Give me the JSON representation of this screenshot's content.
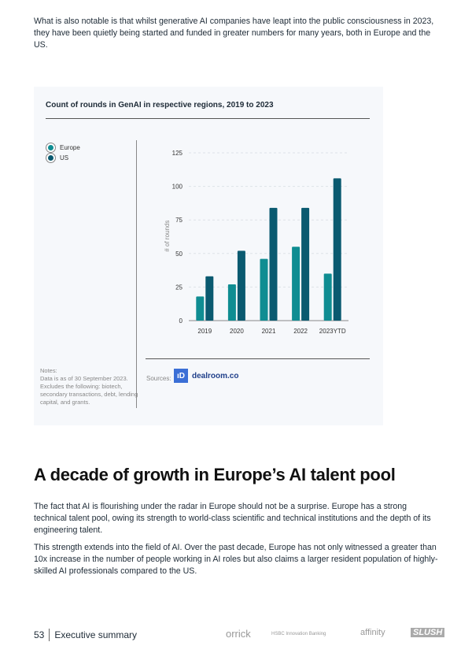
{
  "intro": "What is also notable is that whilst generative AI companies have leapt into the public consciousness in 2023, they have been quietly being started and funded in greater numbers for many years, both in Europe and the US.",
  "chart_data": {
    "type": "bar",
    "title": "Count of rounds in GenAI in respective regions, 2019 to 2023",
    "categories": [
      "2019",
      "2020",
      "2021",
      "2022",
      "2023YTD"
    ],
    "series": [
      {
        "name": "Europe",
        "values": [
          18,
          27,
          46,
          55,
          35
        ],
        "color": "#0f8d92"
      },
      {
        "name": "US",
        "values": [
          33,
          52,
          84,
          84,
          106
        ],
        "color": "#0a5a70"
      }
    ],
    "ylabel": "# of rounds",
    "ylim": [
      0,
      125
    ],
    "yticks": [
      0,
      25,
      50,
      75,
      100,
      125
    ],
    "grid": true,
    "legend": "top-left"
  },
  "notes": {
    "heading": "Notes:",
    "text": "Data is as of 30 September 2023. Excludes the following: biotech, secondary transactions, debt, lending capital, and grants."
  },
  "sources": {
    "label": "Sources:",
    "logo_text": "dealroom.co",
    "logo_mark": "ıD"
  },
  "heading": "A decade of growth in Europe’s AI talent pool",
  "para1": "The fact that AI is flourishing under the radar in Europe should not be a surprise. Europe has a strong technical talent pool, owing its strength to world-class scientific and technical institutions and the depth of its engineering talent.",
  "para2": "This strength extends into the field of AI. Over the past decade, Europe has not only witnessed a greater than 10x increase in the number of people working in AI roles but also claims a larger resident population of highly-skilled AI professionals compared to the US.",
  "footer": {
    "page": "53",
    "section": "Executive summary",
    "partners": [
      "orrick",
      "HSBC Innovation Banking",
      "affinity",
      "SLUSH"
    ]
  }
}
